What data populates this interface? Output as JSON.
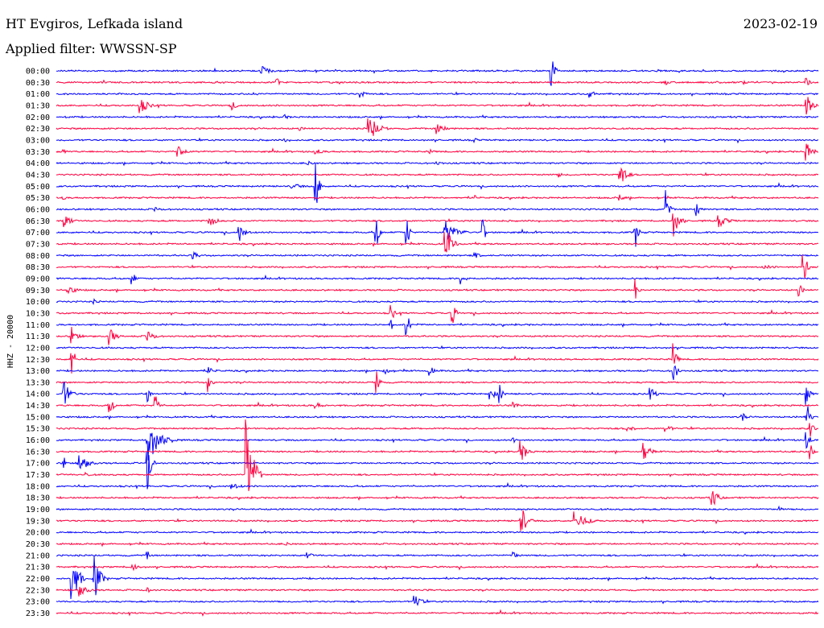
{
  "header": {
    "station": "HT Evgiros, Lefkada island",
    "date": "2023-02-19",
    "filter": "Applied filter: WWSSN-SP"
  },
  "colors": {
    "odd_row": "#0000ff",
    "even_row": "#ff0040",
    "text": "#000000"
  },
  "chart_data": {
    "type": "line",
    "title": "HT Evgiros, Lefkada island",
    "subtitle": "Applied filter: WWSSN-SP",
    "ylabel": "HHZ - 20000",
    "xlabel": "",
    "row_interval_minutes": 30,
    "row_labels": [
      "00:00",
      "00:30",
      "01:00",
      "01:30",
      "02:00",
      "02:30",
      "03:00",
      "03:30",
      "04:00",
      "04:30",
      "05:00",
      "05:30",
      "06:00",
      "06:30",
      "07:00",
      "07:30",
      "08:00",
      "08:30",
      "09:00",
      "09:30",
      "10:00",
      "10:30",
      "11:00",
      "11:30",
      "12:00",
      "12:30",
      "13:00",
      "13:30",
      "14:00",
      "14:30",
      "15:00",
      "15:30",
      "16:00",
      "16:30",
      "17:00",
      "17:30",
      "18:00",
      "18:30",
      "19:00",
      "19:30",
      "20:00",
      "20:30",
      "21:00",
      "21:30",
      "22:00",
      "22:30",
      "23:00",
      "23:30"
    ],
    "events": [
      {
        "row": 0,
        "t": 0.27,
        "amp": 6,
        "dur": 0.03
      },
      {
        "row": 0,
        "t": 0.65,
        "amp": 22,
        "dur": 0.01
      },
      {
        "row": 1,
        "t": 0.29,
        "amp": 5,
        "dur": 0.01
      },
      {
        "row": 1,
        "t": 0.8,
        "amp": 3,
        "dur": 0.02
      },
      {
        "row": 1,
        "t": 0.9,
        "amp": 3,
        "dur": 0.02
      },
      {
        "row": 1,
        "t": 0.985,
        "amp": 8,
        "dur": 0.01
      },
      {
        "row": 2,
        "t": 0.26,
        "amp": 3,
        "dur": 0.02
      },
      {
        "row": 2,
        "t": 0.4,
        "amp": 5,
        "dur": 0.02
      },
      {
        "row": 2,
        "t": 0.7,
        "amp": 6,
        "dur": 0.02
      },
      {
        "row": 3,
        "t": 0.11,
        "amp": 10,
        "dur": 0.03
      },
      {
        "row": 3,
        "t": 0.23,
        "amp": 6,
        "dur": 0.02
      },
      {
        "row": 3,
        "t": 0.985,
        "amp": 14,
        "dur": 0.02
      },
      {
        "row": 4,
        "t": 0.01,
        "amp": 3,
        "dur": 0.01
      },
      {
        "row": 4,
        "t": 0.3,
        "amp": 3,
        "dur": 0.02
      },
      {
        "row": 5,
        "t": 0.32,
        "amp": 4,
        "dur": 0.01
      },
      {
        "row": 5,
        "t": 0.41,
        "amp": 18,
        "dur": 0.03
      },
      {
        "row": 5,
        "t": 0.5,
        "amp": 7,
        "dur": 0.03
      },
      {
        "row": 6,
        "t": 0.3,
        "amp": 3,
        "dur": 0.01
      },
      {
        "row": 6,
        "t": 0.55,
        "amp": 3,
        "dur": 0.01
      },
      {
        "row": 7,
        "t": 0.01,
        "amp": 3,
        "dur": 0.01
      },
      {
        "row": 7,
        "t": 0.16,
        "amp": 12,
        "dur": 0.02
      },
      {
        "row": 7,
        "t": 0.34,
        "amp": 4,
        "dur": 0.03
      },
      {
        "row": 7,
        "t": 0.49,
        "amp": 3,
        "dur": 0.02
      },
      {
        "row": 7,
        "t": 0.985,
        "amp": 12,
        "dur": 0.02
      },
      {
        "row": 8,
        "t": 0.33,
        "amp": 3,
        "dur": 0.02
      },
      {
        "row": 8,
        "t": 0.5,
        "amp": 3,
        "dur": 0.02
      },
      {
        "row": 9,
        "t": 0.66,
        "amp": 4,
        "dur": 0.01
      },
      {
        "row": 9,
        "t": 0.74,
        "amp": 17,
        "dur": 0.02
      },
      {
        "row": 10,
        "t": 0.31,
        "amp": 5,
        "dur": 0.03
      },
      {
        "row": 10,
        "t": 0.34,
        "amp": 40,
        "dur": 0.01
      },
      {
        "row": 11,
        "t": 0.01,
        "amp": 3,
        "dur": 0.01
      },
      {
        "row": 11,
        "t": 0.55,
        "amp": 4,
        "dur": 0.01
      },
      {
        "row": 11,
        "t": 0.74,
        "amp": 4,
        "dur": 0.02
      },
      {
        "row": 12,
        "t": 0.13,
        "amp": 4,
        "dur": 0.02
      },
      {
        "row": 12,
        "t": 0.8,
        "amp": 24,
        "dur": 0.01
      },
      {
        "row": 12,
        "t": 0.84,
        "amp": 14,
        "dur": 0.01
      },
      {
        "row": 13,
        "t": 0.01,
        "amp": 12,
        "dur": 0.02
      },
      {
        "row": 13,
        "t": 0.2,
        "amp": 12,
        "dur": 0.02
      },
      {
        "row": 13,
        "t": 0.81,
        "amp": 20,
        "dur": 0.02
      },
      {
        "row": 13,
        "t": 0.87,
        "amp": 8,
        "dur": 0.03
      },
      {
        "row": 14,
        "t": 0.24,
        "amp": 12,
        "dur": 0.02
      },
      {
        "row": 14,
        "t": 0.42,
        "amp": 22,
        "dur": 0.01
      },
      {
        "row": 14,
        "t": 0.46,
        "amp": 20,
        "dur": 0.01
      },
      {
        "row": 14,
        "t": 0.51,
        "amp": 15,
        "dur": 0.04
      },
      {
        "row": 14,
        "t": 0.56,
        "amp": 17,
        "dur": 0.01
      },
      {
        "row": 14,
        "t": 0.76,
        "amp": 20,
        "dur": 0.01
      },
      {
        "row": 15,
        "t": 0.51,
        "amp": 28,
        "dur": 0.02
      },
      {
        "row": 16,
        "t": 0.18,
        "amp": 5,
        "dur": 0.02
      },
      {
        "row": 16,
        "t": 0.55,
        "amp": 4,
        "dur": 0.02
      },
      {
        "row": 17,
        "t": 0.98,
        "amp": 35,
        "dur": 0.01
      },
      {
        "row": 17,
        "t": 0.93,
        "amp": 3,
        "dur": 0.04
      },
      {
        "row": 18,
        "t": 0.1,
        "amp": 10,
        "dur": 0.01
      },
      {
        "row": 18,
        "t": 0.53,
        "amp": 8,
        "dur": 0.02
      },
      {
        "row": 19,
        "t": 0.015,
        "amp": 6,
        "dur": 0.03
      },
      {
        "row": 19,
        "t": 0.76,
        "amp": 16,
        "dur": 0.01
      },
      {
        "row": 19,
        "t": 0.975,
        "amp": 12,
        "dur": 0.01
      },
      {
        "row": 20,
        "t": 0.05,
        "amp": 3,
        "dur": 0.02
      },
      {
        "row": 21,
        "t": 0.44,
        "amp": 12,
        "dur": 0.01
      },
      {
        "row": 21,
        "t": 0.52,
        "amp": 16,
        "dur": 0.01
      },
      {
        "row": 22,
        "t": 0.44,
        "amp": 6,
        "dur": 0.01
      },
      {
        "row": 22,
        "t": 0.46,
        "amp": 18,
        "dur": 0.01
      },
      {
        "row": 23,
        "t": 0.02,
        "amp": 12,
        "dur": 0.02
      },
      {
        "row": 23,
        "t": 0.07,
        "amp": 12,
        "dur": 0.02
      },
      {
        "row": 23,
        "t": 0.12,
        "amp": 10,
        "dur": 0.02
      },
      {
        "row": 25,
        "t": 0.02,
        "amp": 25,
        "dur": 0.01
      },
      {
        "row": 25,
        "t": 0.81,
        "amp": 20,
        "dur": 0.01
      },
      {
        "row": 26,
        "t": 0.2,
        "amp": 6,
        "dur": 0.02
      },
      {
        "row": 26,
        "t": 0.43,
        "amp": 6,
        "dur": 0.02
      },
      {
        "row": 26,
        "t": 0.49,
        "amp": 6,
        "dur": 0.02
      },
      {
        "row": 26,
        "t": 0.81,
        "amp": 24,
        "dur": 0.01
      },
      {
        "row": 27,
        "t": 0.2,
        "amp": 16,
        "dur": 0.01
      },
      {
        "row": 27,
        "t": 0.42,
        "amp": 20,
        "dur": 0.01
      },
      {
        "row": 28,
        "t": 0.01,
        "amp": 18,
        "dur": 0.02
      },
      {
        "row": 28,
        "t": 0.12,
        "amp": 10,
        "dur": 0.01
      },
      {
        "row": 28,
        "t": 0.57,
        "amp": 8,
        "dur": 0.02
      },
      {
        "row": 28,
        "t": 0.58,
        "amp": 20,
        "dur": 0.01
      },
      {
        "row": 28,
        "t": 0.78,
        "amp": 8,
        "dur": 0.02
      },
      {
        "row": 28,
        "t": 0.985,
        "amp": 16,
        "dur": 0.01
      },
      {
        "row": 29,
        "t": 0.07,
        "amp": 18,
        "dur": 0.01
      },
      {
        "row": 29,
        "t": 0.13,
        "amp": 16,
        "dur": 0.01
      },
      {
        "row": 29,
        "t": 0.34,
        "amp": 4,
        "dur": 0.03
      },
      {
        "row": 29,
        "t": 0.6,
        "amp": 4,
        "dur": 0.02
      },
      {
        "row": 30,
        "t": 0.9,
        "amp": 6,
        "dur": 0.02
      },
      {
        "row": 30,
        "t": 0.985,
        "amp": 22,
        "dur": 0.01
      },
      {
        "row": 31,
        "t": 0.75,
        "amp": 6,
        "dur": 0.02
      },
      {
        "row": 31,
        "t": 0.8,
        "amp": 6,
        "dur": 0.02
      },
      {
        "row": 31,
        "t": 0.99,
        "amp": 12,
        "dur": 0.01
      },
      {
        "row": 32,
        "t": 0.12,
        "amp": 30,
        "dur": 0.04
      },
      {
        "row": 32,
        "t": 0.6,
        "amp": 4,
        "dur": 0.01
      },
      {
        "row": 32,
        "t": 0.985,
        "amp": 14,
        "dur": 0.01
      },
      {
        "row": 33,
        "t": 0.61,
        "amp": 14,
        "dur": 0.02
      },
      {
        "row": 33,
        "t": 0.77,
        "amp": 16,
        "dur": 0.02
      },
      {
        "row": 33,
        "t": 0.99,
        "amp": 10,
        "dur": 0.01
      },
      {
        "row": 34,
        "t": 0.01,
        "amp": 8,
        "dur": 0.01
      },
      {
        "row": 34,
        "t": 0.03,
        "amp": 12,
        "dur": 0.03
      },
      {
        "row": 34,
        "t": 0.12,
        "amp": 40,
        "dur": 0.01
      },
      {
        "row": 35,
        "t": 0.25,
        "amp": 80,
        "dur": 0.02
      },
      {
        "row": 35,
        "t": 0.04,
        "amp": 4,
        "dur": 0.01
      },
      {
        "row": 36,
        "t": 0.23,
        "amp": 4,
        "dur": 0.04
      },
      {
        "row": 37,
        "t": 0.86,
        "amp": 14,
        "dur": 0.02
      },
      {
        "row": 37,
        "t": 0.8,
        "amp": 3,
        "dur": 0.01
      },
      {
        "row": 38,
        "t": 0.95,
        "amp": 4,
        "dur": 0.01
      },
      {
        "row": 39,
        "t": 0.61,
        "amp": 20,
        "dur": 0.02
      },
      {
        "row": 39,
        "t": 0.68,
        "amp": 12,
        "dur": 0.04
      },
      {
        "row": 41,
        "t": 0.3,
        "amp": 3,
        "dur": 0.02
      },
      {
        "row": 42,
        "t": 0.12,
        "amp": 6,
        "dur": 0.01
      },
      {
        "row": 42,
        "t": 0.33,
        "amp": 4,
        "dur": 0.02
      },
      {
        "row": 42,
        "t": 0.6,
        "amp": 5,
        "dur": 0.02
      },
      {
        "row": 43,
        "t": 0.1,
        "amp": 6,
        "dur": 0.02
      },
      {
        "row": 44,
        "t": 0.02,
        "amp": 40,
        "dur": 0.02
      },
      {
        "row": 44,
        "t": 0.05,
        "amp": 28,
        "dur": 0.02
      },
      {
        "row": 45,
        "t": 0.03,
        "amp": 8,
        "dur": 0.03
      },
      {
        "row": 45,
        "t": 0.12,
        "amp": 3,
        "dur": 0.02
      },
      {
        "row": 46,
        "t": 0.47,
        "amp": 12,
        "dur": 0.02
      }
    ]
  }
}
